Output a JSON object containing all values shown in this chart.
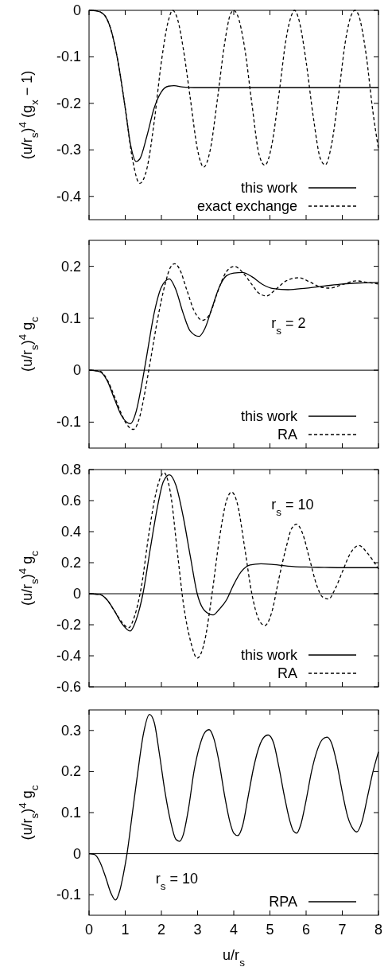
{
  "chart_data": [
    {
      "type": "line",
      "ylabel": "(u/r$_{s}$)$^{4}$ (g$_{x}$ − 1)",
      "xlim": [
        0,
        8
      ],
      "xticks": [
        0,
        1,
        2,
        3,
        4,
        5,
        6,
        7,
        8
      ],
      "ylim": [
        -0.45,
        0
      ],
      "yticks": [
        0,
        -0.1,
        -0.2,
        -0.3,
        -0.4
      ],
      "tick_labels": "y",
      "legend": "bottom right",
      "series": [
        {
          "name": "this work",
          "color": "#000000",
          "line_style": "solid",
          "x": [
            0,
            0.2,
            0.4,
            0.6,
            0.8,
            1.0,
            1.15,
            1.3,
            1.4,
            1.6,
            1.8,
            2.0,
            2.2,
            2.35,
            2.6,
            2.9,
            4,
            6,
            8
          ],
          "values": [
            0,
            -0.001,
            -0.008,
            -0.04,
            -0.11,
            -0.21,
            -0.29,
            -0.325,
            -0.32,
            -0.27,
            -0.21,
            -0.175,
            -0.163,
            -0.162,
            -0.165,
            -0.166,
            -0.166,
            -0.166,
            -0.166
          ]
        },
        {
          "name": "exact exchange",
          "color": "#000000",
          "line_style": "dashed",
          "x": [
            0,
            0.2,
            0.4,
            0.6,
            0.8,
            1.0,
            1.2,
            1.4,
            1.6,
            1.8,
            2.0,
            2.2,
            2.31,
            2.45,
            2.6,
            2.8,
            3.0,
            3.17,
            3.35,
            3.55,
            3.75,
            3.9,
            4.0,
            4.1,
            4.3,
            4.5,
            4.7,
            4.86,
            5.05,
            5.25,
            5.45,
            5.6,
            5.68,
            5.8,
            6.0,
            6.2,
            6.4,
            6.53,
            6.7,
            6.9,
            7.1,
            7.25,
            7.35,
            7.45,
            7.65,
            7.85,
            8.0
          ],
          "values": [
            0,
            -0.001,
            -0.008,
            -0.04,
            -0.11,
            -0.21,
            -0.32,
            -0.372,
            -0.34,
            -0.24,
            -0.11,
            -0.02,
            0,
            -0.02,
            -0.08,
            -0.19,
            -0.3,
            -0.337,
            -0.3,
            -0.19,
            -0.07,
            -0.01,
            0,
            -0.01,
            -0.08,
            -0.2,
            -0.31,
            -0.333,
            -0.29,
            -0.18,
            -0.06,
            -0.01,
            0,
            -0.02,
            -0.11,
            -0.23,
            -0.32,
            -0.332,
            -0.29,
            -0.18,
            -0.06,
            -0.01,
            0,
            -0.01,
            -0.09,
            -0.22,
            -0.298
          ]
        }
      ]
    },
    {
      "type": "line",
      "ylabel": "(u/r$_{s}$)$^{4}$ g$_{c}$",
      "annotations": [
        "r$_{s}$ = 2"
      ],
      "xlim": [
        0,
        8
      ],
      "xticks": [
        0,
        1,
        2,
        3,
        4,
        5,
        6,
        7,
        8
      ],
      "ylim": [
        -0.15,
        0.25
      ],
      "yticks": [
        -0.1,
        0,
        0.1,
        0.2
      ],
      "tick_labels": "y",
      "legend": "bottom right",
      "ref_lines": [
        {
          "axis": "y",
          "value": 0,
          "color": "#000000"
        }
      ],
      "series": [
        {
          "name": "this work",
          "color": "#000000",
          "line_style": "solid",
          "x": [
            0,
            0.3,
            0.5,
            0.7,
            0.9,
            1.14,
            1.3,
            1.45,
            1.6,
            1.8,
            2.0,
            2.22,
            2.4,
            2.6,
            2.8,
            3.04,
            3.2,
            3.4,
            3.6,
            3.8,
            4.0,
            4.24,
            4.5,
            4.8,
            5.1,
            5.5,
            6,
            6.5,
            7,
            7.5,
            8
          ],
          "values": [
            0,
            -0.003,
            -0.02,
            -0.055,
            -0.088,
            -0.103,
            -0.08,
            -0.03,
            0.03,
            0.11,
            0.16,
            0.176,
            0.155,
            0.11,
            0.075,
            0.065,
            0.08,
            0.12,
            0.16,
            0.182,
            0.187,
            0.188,
            0.18,
            0.165,
            0.157,
            0.155,
            0.158,
            0.162,
            0.166,
            0.168,
            0.169
          ]
        },
        {
          "name": "RA",
          "color": "#000000",
          "line_style": "dashed",
          "x": [
            0,
            0.3,
            0.5,
            0.7,
            0.9,
            1.05,
            1.23,
            1.4,
            1.55,
            1.7,
            1.9,
            2.1,
            2.25,
            2.37,
            2.5,
            2.7,
            2.9,
            3.14,
            3.35,
            3.55,
            3.8,
            4.02,
            4.25,
            4.5,
            4.7,
            4.91,
            5.15,
            5.45,
            5.79,
            6.1,
            6.4,
            6.66,
            7.0,
            7.39,
            7.7,
            8
          ],
          "values": [
            0,
            -0.002,
            -0.018,
            -0.05,
            -0.085,
            -0.105,
            -0.114,
            -0.09,
            -0.04,
            0.02,
            0.1,
            0.165,
            0.198,
            0.205,
            0.195,
            0.155,
            0.115,
            0.096,
            0.11,
            0.15,
            0.19,
            0.2,
            0.188,
            0.165,
            0.148,
            0.143,
            0.155,
            0.172,
            0.178,
            0.17,
            0.16,
            0.158,
            0.165,
            0.172,
            0.169,
            0.166
          ]
        }
      ]
    },
    {
      "type": "line",
      "ylabel": "(u/r$_{s}$)$^{4}$ g$_{c}$",
      "annotations": [
        "r$_{s}$ = 10"
      ],
      "xlim": [
        0,
        8
      ],
      "xticks": [
        0,
        1,
        2,
        3,
        4,
        5,
        6,
        7,
        8
      ],
      "ylim": [
        -0.6,
        0.8
      ],
      "yticks": [
        -0.6,
        -0.4,
        -0.2,
        0,
        0.2,
        0.4,
        0.6,
        0.8
      ],
      "tick_labels": "y",
      "legend": "bottom right",
      "ref_lines": [
        {
          "axis": "y",
          "value": 0,
          "color": "#000000"
        }
      ],
      "series": [
        {
          "name": "this work",
          "color": "#000000",
          "line_style": "solid",
          "x": [
            0,
            0.3,
            0.5,
            0.7,
            0.9,
            1.14,
            1.3,
            1.49,
            1.7,
            1.9,
            2.05,
            2.22,
            2.4,
            2.6,
            2.8,
            2.99,
            3.2,
            3.43,
            3.6,
            3.8,
            3.98,
            4.2,
            4.45,
            4.75,
            5.1,
            5.5,
            6,
            6.5,
            7,
            8
          ],
          "values": [
            0,
            -0.005,
            -0.04,
            -0.11,
            -0.19,
            -0.24,
            -0.17,
            0,
            0.3,
            0.57,
            0.72,
            0.766,
            0.7,
            0.5,
            0.24,
            0,
            -0.11,
            -0.137,
            -0.1,
            -0.04,
            0.05,
            0.14,
            0.185,
            0.193,
            0.188,
            0.178,
            0.172,
            0.17,
            0.168,
            0.168
          ]
        },
        {
          "name": "RA",
          "color": "#000000",
          "line_style": "dashed",
          "x": [
            0,
            0.3,
            0.5,
            0.7,
            0.9,
            1.09,
            1.25,
            1.45,
            1.65,
            1.85,
            2.07,
            2.25,
            2.45,
            2.6,
            2.8,
            2.99,
            3.2,
            3.4,
            3.6,
            3.8,
            3.94,
            4.1,
            4.3,
            4.5,
            4.7,
            4.86,
            5.05,
            5.25,
            5.45,
            5.6,
            5.74,
            5.9,
            6.1,
            6.3,
            6.45,
            6.62,
            6.8,
            7.0,
            7.2,
            7.46,
            7.7,
            8
          ],
          "values": [
            0,
            -0.005,
            -0.04,
            -0.11,
            -0.18,
            -0.22,
            -0.15,
            0.05,
            0.38,
            0.65,
            0.78,
            0.65,
            0.25,
            -0.05,
            -0.3,
            -0.415,
            -0.3,
            0,
            0.35,
            0.6,
            0.655,
            0.58,
            0.3,
            0,
            -0.17,
            -0.205,
            -0.12,
            0.1,
            0.3,
            0.42,
            0.448,
            0.39,
            0.22,
            0.05,
            -0.02,
            -0.034,
            0.03,
            0.14,
            0.25,
            0.311,
            0.26,
            0.16
          ]
        }
      ]
    },
    {
      "type": "line",
      "ylabel": "(u/r$_{s}$)$^{4}$ g$_{c}$",
      "xlabel": "u/r$_{s}$",
      "annotations": [
        "r$_{s}$ = 10"
      ],
      "xlim": [
        0,
        8
      ],
      "xticks": [
        0,
        1,
        2,
        3,
        4,
        5,
        6,
        7,
        8
      ],
      "ylim": [
        -0.15,
        0.35
      ],
      "yticks": [
        -0.1,
        0,
        0.1,
        0.2,
        0.3
      ],
      "legend": "bottom right",
      "ref_lines": [
        {
          "axis": "y",
          "value": 0,
          "color": "#000000"
        }
      ],
      "series": [
        {
          "name": "RPA",
          "color": "#000000",
          "line_style": "solid",
          "x": [
            0,
            0.15,
            0.3,
            0.45,
            0.6,
            0.73,
            0.85,
            0.95,
            1.05,
            1.2,
            1.35,
            1.5,
            1.67,
            1.8,
            1.95,
            2.1,
            2.25,
            2.4,
            2.5,
            2.6,
            2.75,
            2.9,
            3.05,
            3.2,
            3.32,
            3.45,
            3.6,
            3.75,
            3.9,
            4.0,
            4.11,
            4.25,
            4.4,
            4.55,
            4.7,
            4.85,
            4.95,
            5.1,
            5.25,
            5.4,
            5.55,
            5.65,
            5.74,
            5.85,
            6.0,
            6.15,
            6.3,
            6.45,
            6.58,
            6.7,
            6.85,
            7.0,
            7.15,
            7.3,
            7.4,
            7.55,
            7.7,
            7.85,
            8
          ],
          "values": [
            0,
            -0.002,
            -0.02,
            -0.055,
            -0.095,
            -0.113,
            -0.09,
            -0.05,
            0,
            0.1,
            0.2,
            0.29,
            0.339,
            0.32,
            0.24,
            0.15,
            0.08,
            0.035,
            0.03,
            0.045,
            0.11,
            0.2,
            0.26,
            0.295,
            0.302,
            0.28,
            0.22,
            0.14,
            0.075,
            0.05,
            0.044,
            0.07,
            0.14,
            0.21,
            0.26,
            0.285,
            0.289,
            0.27,
            0.21,
            0.14,
            0.08,
            0.055,
            0.05,
            0.07,
            0.13,
            0.2,
            0.25,
            0.278,
            0.284,
            0.27,
            0.22,
            0.15,
            0.09,
            0.06,
            0.053,
            0.08,
            0.14,
            0.2,
            0.248
          ]
        }
      ]
    }
  ]
}
